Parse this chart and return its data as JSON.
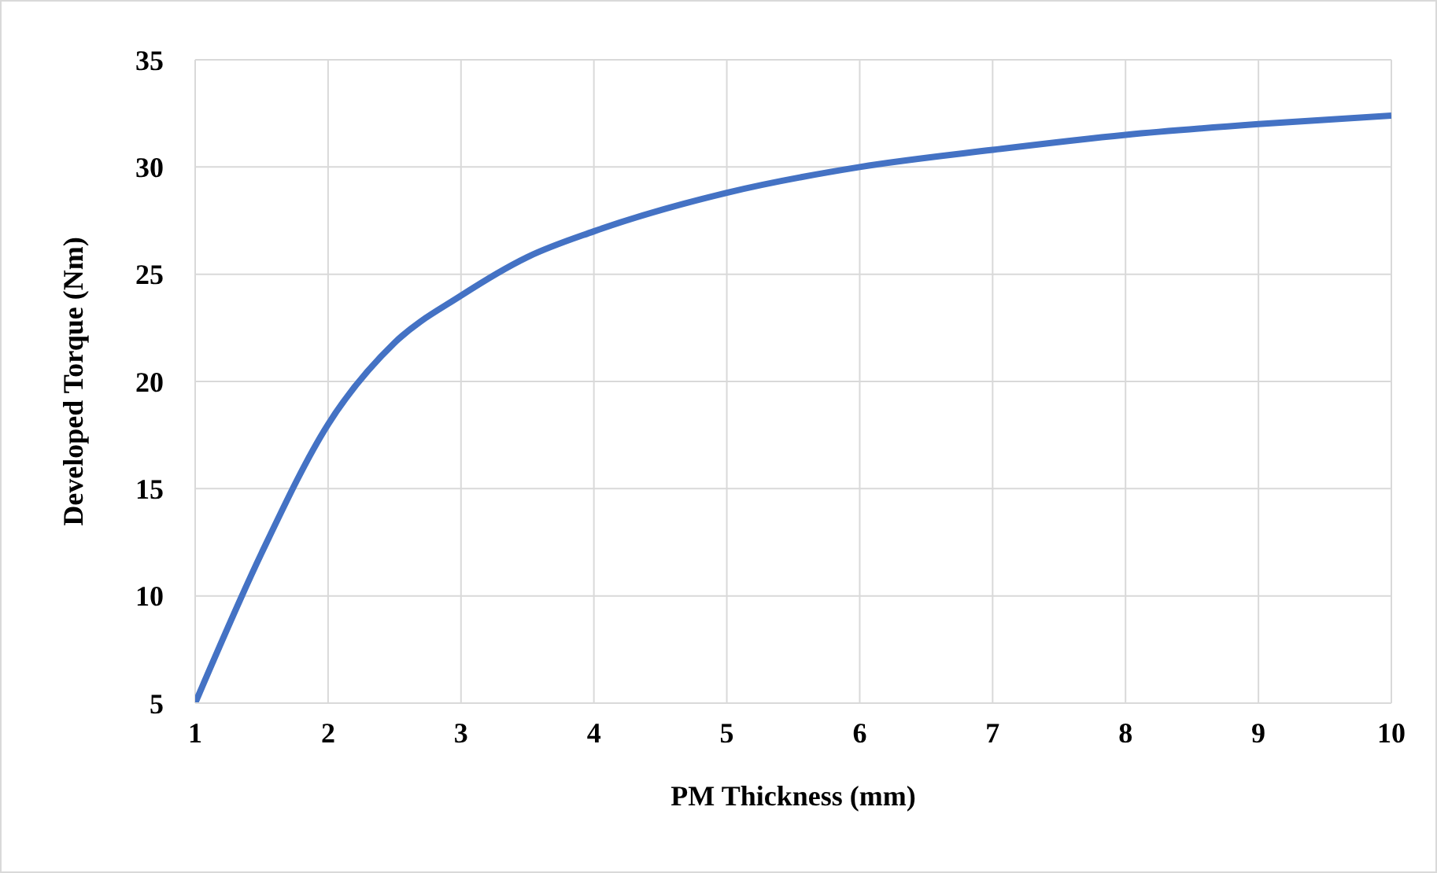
{
  "chart_data": {
    "type": "line",
    "xlabel": "PM Thickness (mm)",
    "ylabel": "Developed Torque (Nm)",
    "x": [
      1,
      1.5,
      2,
      2.5,
      3,
      3.5,
      4,
      5,
      6,
      7,
      8,
      9,
      10
    ],
    "series": [
      {
        "color": "#4472c4",
        "values": [
          5,
          12,
          18,
          21.8,
          24,
          25.8,
          27,
          28.8,
          30,
          30.8,
          31.5,
          32,
          32.4
        ]
      }
    ],
    "xlim": [
      1,
      10
    ],
    "xticks": [
      1,
      2,
      3,
      4,
      5,
      6,
      7,
      8,
      9,
      10
    ],
    "ylim": [
      5,
      35
    ],
    "yticks": [
      5,
      10,
      15,
      20,
      25,
      30,
      35
    ],
    "grid": true,
    "marker": "none",
    "line_style": "solid"
  }
}
